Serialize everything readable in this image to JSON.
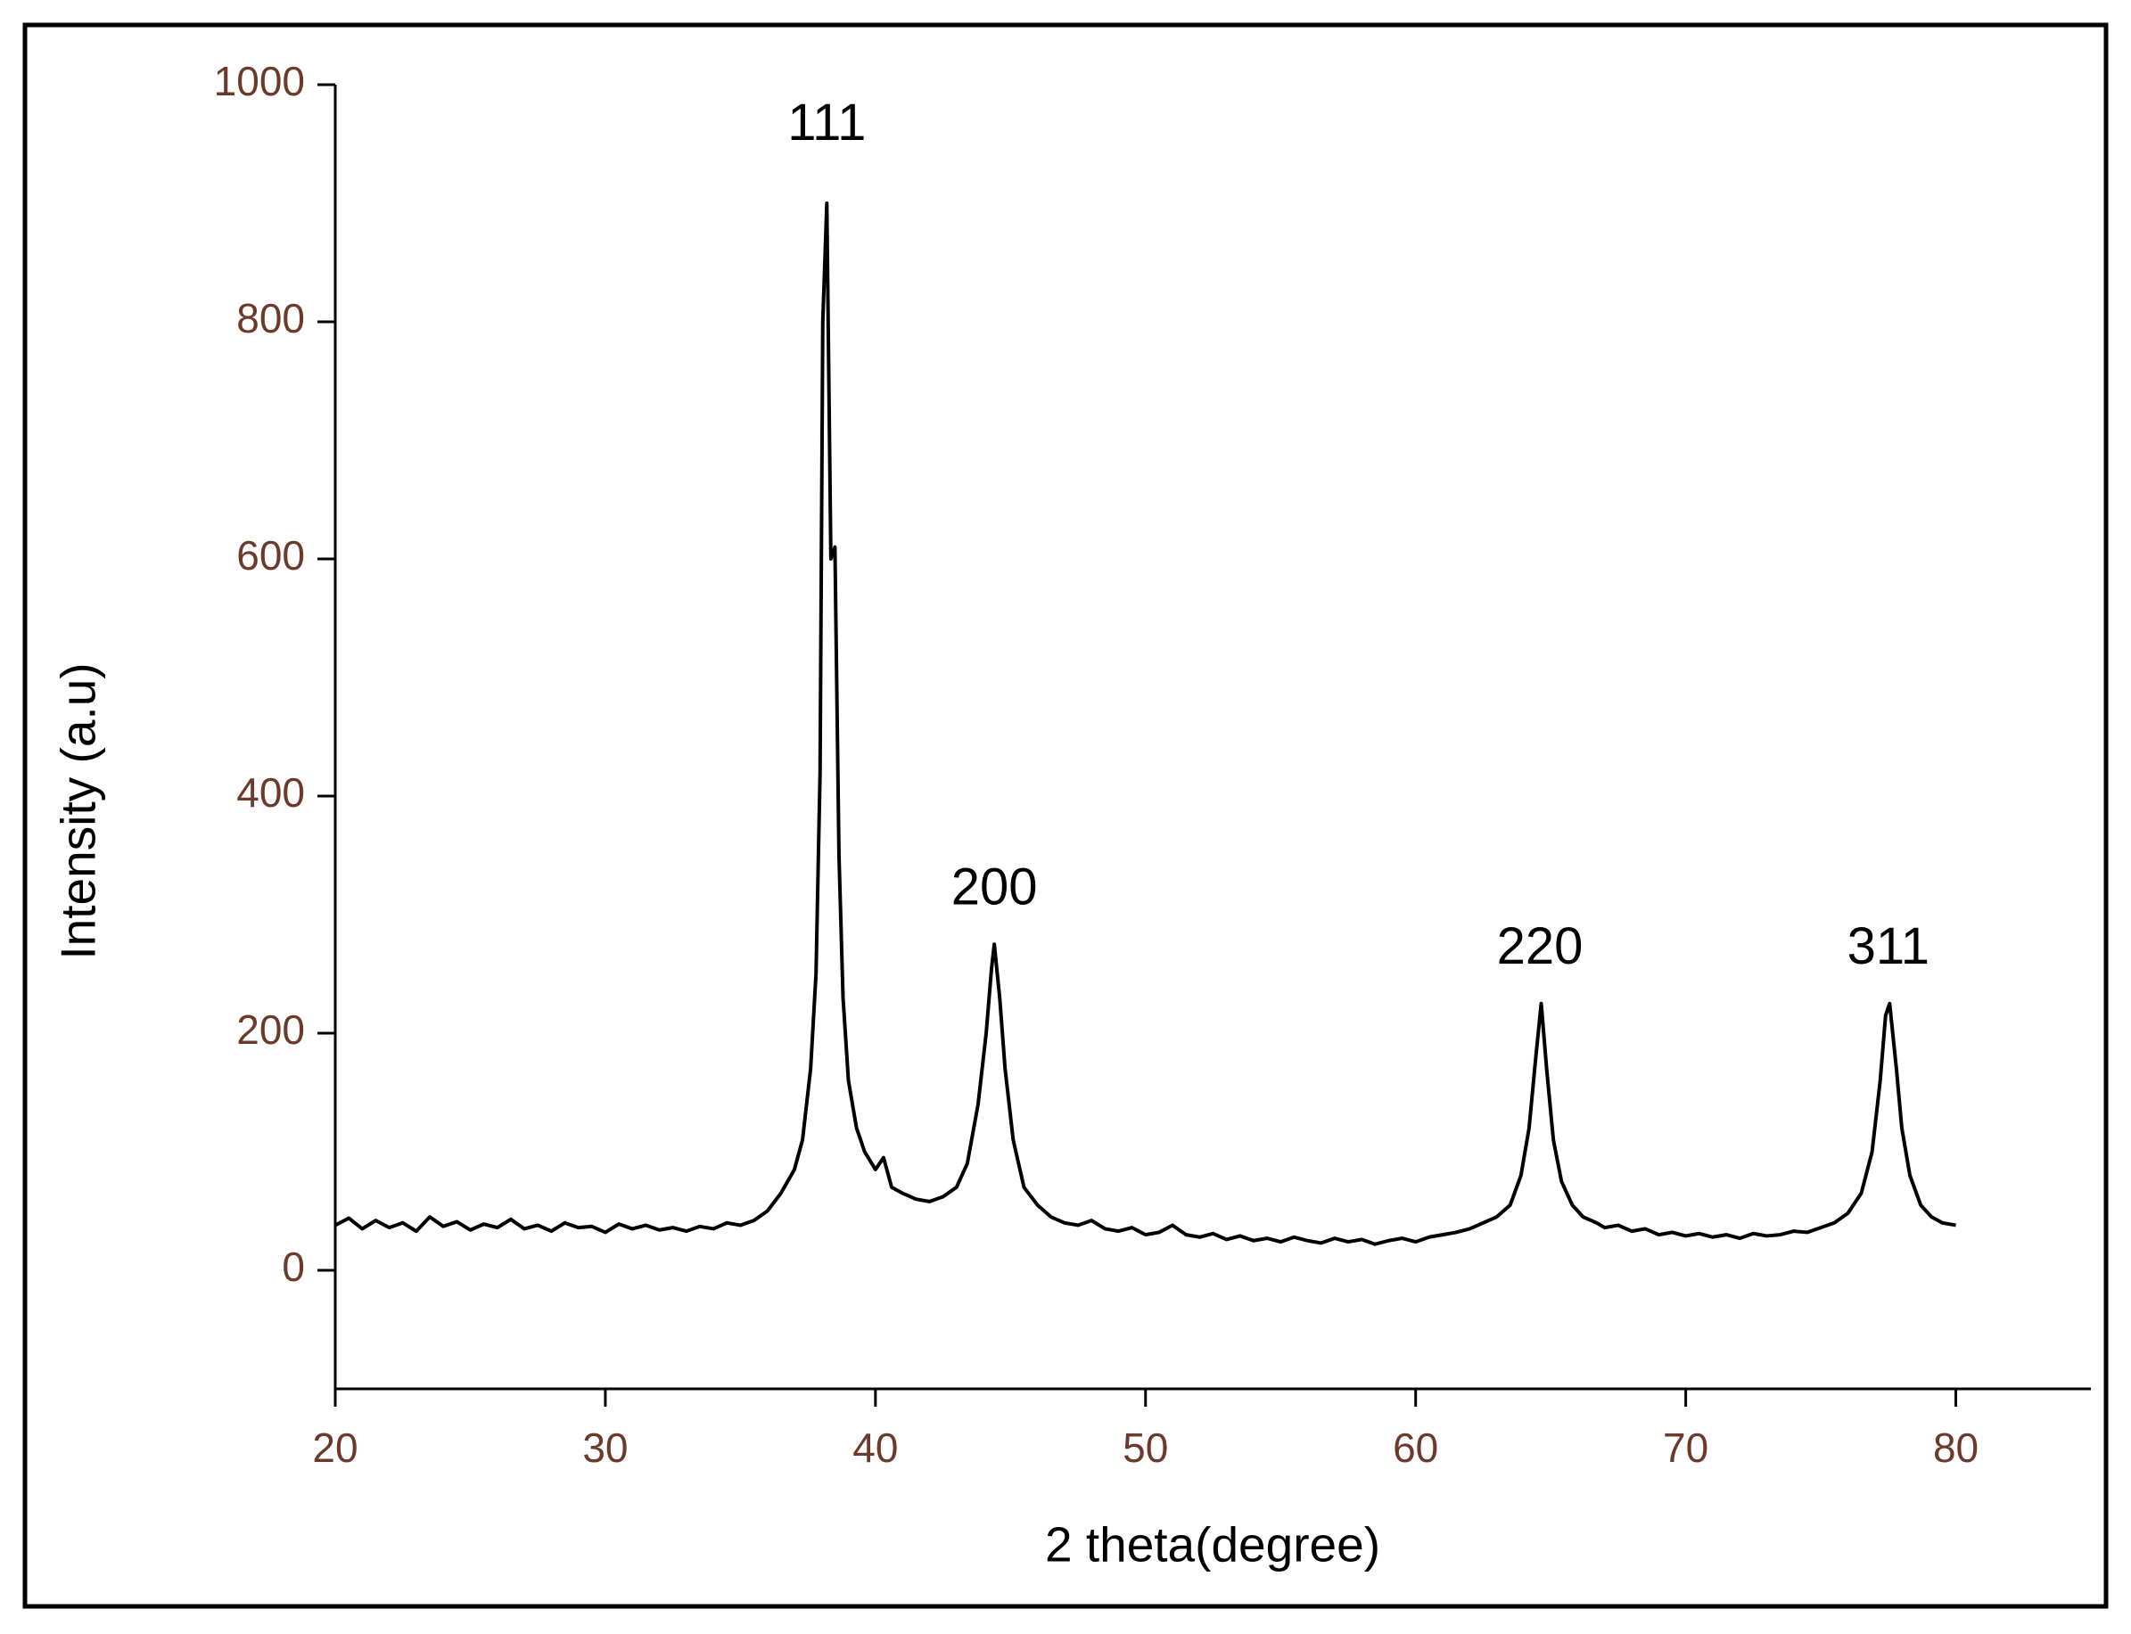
{
  "chart_data": {
    "type": "line",
    "x_label": "2 theta(degree)",
    "y_label": "Intensity (a.u)",
    "xlim": [
      20,
      85
    ],
    "ylim": [
      -100,
      1000
    ],
    "xticks": [
      20,
      30,
      40,
      50,
      60,
      70,
      80
    ],
    "yticks": [
      0,
      200,
      400,
      600,
      800,
      1000
    ],
    "color": "#000000",
    "x": [
      20,
      20.5,
      21,
      21.5,
      22,
      22.5,
      23,
      23.5,
      24,
      24.5,
      25,
      25.5,
      26,
      26.5,
      27,
      27.5,
      28,
      28.5,
      29,
      29.5,
      30,
      30.5,
      31,
      31.5,
      32,
      32.5,
      33,
      33.5,
      34,
      34.5,
      35,
      35.5,
      36,
      36.5,
      37,
      37.3,
      37.6,
      37.8,
      37.95,
      38.05,
      38.2,
      38.35,
      38.5,
      38.65,
      38.8,
      39,
      39.3,
      39.6,
      40,
      40.3,
      40.6,
      41,
      41.5,
      42,
      42.5,
      43,
      43.4,
      43.8,
      44.1,
      44.3,
      44.4,
      44.6,
      44.8,
      45.1,
      45.5,
      46,
      46.5,
      47,
      47.5,
      48,
      48.5,
      49,
      49.5,
      50,
      50.5,
      51,
      51.5,
      52,
      52.5,
      53,
      53.5,
      54,
      54.5,
      55,
      55.5,
      56,
      56.5,
      57,
      57.5,
      58,
      58.5,
      59,
      59.5,
      60,
      60.5,
      61,
      61.5,
      62,
      62.5,
      63,
      63.5,
      63.9,
      64.2,
      64.45,
      64.65,
      64.85,
      65.1,
      65.4,
      65.8,
      66.2,
      66.7,
      67,
      67.5,
      68,
      68.5,
      69,
      69.5,
      70,
      70.5,
      71,
      71.5,
      72,
      72.5,
      73,
      73.5,
      74,
      74.5,
      75,
      75.5,
      76,
      76.5,
      76.9,
      77.2,
      77.4,
      77.55,
      77.8,
      78,
      78.3,
      78.7,
      79.1,
      79.5,
      80
    ],
    "values": [
      38,
      44,
      35,
      42,
      36,
      40,
      33,
      45,
      37,
      41,
      34,
      39,
      36,
      43,
      35,
      38,
      33,
      40,
      36,
      37,
      32,
      39,
      35,
      38,
      34,
      36,
      33,
      37,
      35,
      40,
      38,
      42,
      50,
      65,
      85,
      110,
      170,
      250,
      420,
      800,
      900,
      600,
      610,
      350,
      230,
      160,
      120,
      100,
      85,
      95,
      70,
      65,
      60,
      58,
      62,
      70,
      90,
      140,
      200,
      255,
      275,
      230,
      170,
      110,
      70,
      55,
      45,
      40,
      38,
      42,
      35,
      33,
      36,
      30,
      32,
      38,
      30,
      28,
      31,
      26,
      29,
      25,
      27,
      24,
      28,
      25,
      23,
      27,
      24,
      26,
      22,
      25,
      27,
      24,
      28,
      30,
      32,
      35,
      40,
      45,
      55,
      80,
      120,
      180,
      225,
      170,
      110,
      75,
      55,
      45,
      40,
      36,
      38,
      33,
      35,
      30,
      32,
      29,
      31,
      28,
      30,
      27,
      31,
      29,
      30,
      33,
      32,
      36,
      40,
      48,
      65,
      100,
      160,
      215,
      225,
      170,
      120,
      80,
      55,
      45,
      40,
      38
    ],
    "annotations": [
      {
        "text": "111",
        "x": 38.2,
        "y": 965
      },
      {
        "text": "200",
        "x": 44.4,
        "y": 320
      },
      {
        "text": "220",
        "x": 64.6,
        "y": 270
      },
      {
        "text": "311",
        "x": 77.5,
        "y": 270
      }
    ]
  }
}
